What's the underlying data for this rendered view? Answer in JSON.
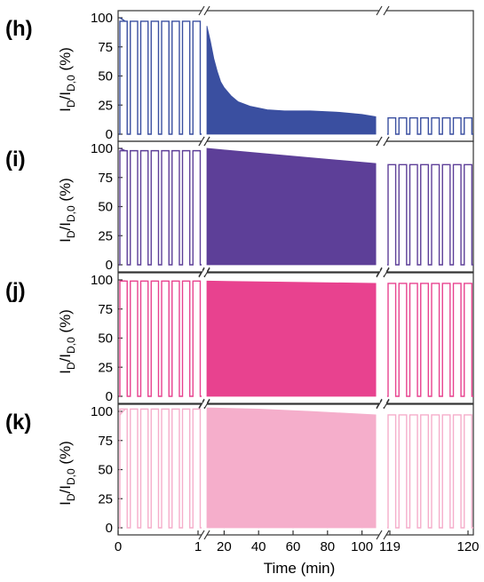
{
  "chart_data": {
    "type": "line",
    "xlabel": "Time (min)",
    "ylabel": "I_D/I_D,0 (%)",
    "ylabel_parts": {
      "main": "I",
      "sub1": "D",
      "slash": "/I",
      "sub2": "D,0",
      "unit": " (%)"
    },
    "ylim": [
      0,
      100
    ],
    "y_ticks": [
      "0",
      "25",
      "50",
      "75",
      "100"
    ],
    "x_axis_segments": [
      {
        "range": [
          0,
          1
        ],
        "tick_labels": [
          "0",
          "1"
        ]
      },
      {
        "range": [
          10,
          110
        ],
        "tick_labels": [
          "20",
          "40",
          "60",
          "80",
          "100"
        ],
        "tick_values": [
          20,
          40,
          60,
          80,
          100
        ]
      },
      {
        "range": [
          119,
          120
        ],
        "tick_labels": [
          "119",
          "120"
        ]
      }
    ],
    "panels": [
      {
        "label": "(h)",
        "color": "#3a4fa0",
        "pulse_high_start": 100,
        "pulse_high_mid": 97,
        "pulse_count_start": 8,
        "decay_t": [
          10,
          12,
          14,
          16,
          18,
          20,
          24,
          28,
          35,
          45,
          55,
          70,
          85,
          100,
          108
        ],
        "decay_v": [
          93,
          80,
          65,
          54,
          45,
          40,
          33,
          28,
          24,
          21,
          20,
          20,
          19,
          17,
          15
        ],
        "pulse_high_end": 14,
        "pulse_count_end": 8
      },
      {
        "label": "(i)",
        "color": "#5d3f98",
        "pulse_high_start": 100,
        "pulse_high_mid": 98,
        "pulse_count_start": 8,
        "decay_t": [
          10,
          40,
          70,
          108
        ],
        "decay_v": [
          100,
          96,
          92,
          87
        ],
        "pulse_high_end": 86,
        "pulse_count_end": 8
      },
      {
        "label": "(j)",
        "color": "#e8428f",
        "pulse_high_start": 99,
        "pulse_high_mid": 99,
        "pulse_count_start": 8,
        "decay_t": [
          10,
          60,
          108
        ],
        "decay_v": [
          99,
          98,
          97
        ],
        "pulse_high_end": 97,
        "pulse_count_end": 8
      },
      {
        "label": "(k)",
        "color": "#f5aecb",
        "pulse_high_start": 97,
        "pulse_high_mid": 102,
        "pulse_count_start": 8,
        "decay_t": [
          10,
          40,
          70,
          108
        ],
        "decay_v": [
          103,
          102,
          100,
          97
        ],
        "pulse_high_end": 97,
        "pulse_count_end": 8
      }
    ]
  }
}
